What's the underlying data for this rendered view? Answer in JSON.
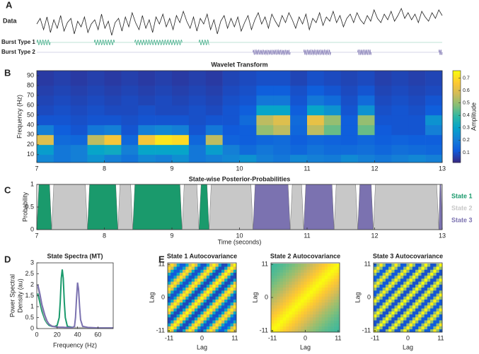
{
  "chart_data": [
    {
      "type": "trace",
      "panel": "A",
      "label": "Data",
      "color": "#222222",
      "ylim": [
        -0.8,
        1.3
      ],
      "xlim": [
        7,
        13
      ],
      "values": [
        0.1,
        0.5,
        -0.3,
        0.6,
        -0.5,
        0.4,
        -0.2,
        0.7,
        -0.4,
        0.2,
        0.5,
        -0.6,
        0.3,
        -0.1,
        0.6,
        -0.5,
        0.1,
        0.4,
        -0.3,
        0.8,
        -0.2,
        0.3,
        -0.7,
        0.2,
        0.5,
        -0.4,
        0.6,
        -0.1,
        0.9,
        0.2,
        -0.3,
        0.7,
        -0.2,
        0.4,
        -0.5,
        0.6,
        0.1,
        0.8,
        -0.1,
        0.5,
        -0.3,
        0.7,
        0.2,
        1.0,
        0.3,
        -0.2,
        0.6,
        -0.4,
        0.5,
        0.1,
        0.8,
        -0.3,
        0.4,
        -0.6,
        0.3,
        0.7,
        -0.2,
        0.5,
        -0.1,
        0.6,
        -0.4,
        0.2,
        0.7,
        -0.3,
        0.4,
        0.9,
        0.1,
        0.6,
        -0.2,
        0.8,
        0.3,
        -0.1,
        0.7,
        0.2,
        0.9,
        0.4,
        -0.2,
        0.6,
        0.1,
        0.8,
        -0.3,
        0.5,
        0.2,
        0.9,
        0.0,
        0.6,
        0.3,
        1.0,
        0.2,
        0.7,
        -0.1,
        0.5,
        0.8,
        0.2,
        0.9,
        0.4,
        0.1,
        0.7,
        0.3,
        1.1,
        0.5,
        0.2,
        0.8,
        0.4,
        1.0,
        0.3,
        0.7,
        1.2,
        0.5,
        0.9,
        0.4,
        0.8,
        0.2,
        1.0,
        0.6,
        0.3,
        0.9,
        0.5,
        1.1,
        0.7
      ],
      "bursts": [
        {
          "name": "Burst Type 1",
          "color": "#2ca37a",
          "frequency": 25,
          "intervals": [
            [
              7.0,
              7.2
            ],
            [
              7.85,
              8.15
            ],
            [
              8.45,
              9.15
            ],
            [
              9.4,
              9.55
            ]
          ]
        },
        {
          "name": "Burst Type 2",
          "color": "#7b72b0",
          "frequency": 40,
          "intervals": [
            [
              10.2,
              10.75
            ],
            [
              10.95,
              11.35
            ],
            [
              11.75,
              11.95
            ],
            [
              12.95,
              13.0
            ]
          ]
        }
      ]
    },
    {
      "type": "heatmap",
      "panel": "B",
      "title": "Wavelet Transform",
      "ylabel": "Frequency (Hz)",
      "colormap": "parula",
      "xlim": [
        7,
        13
      ],
      "xticks": [
        7,
        8,
        9,
        10,
        11,
        12,
        13
      ],
      "ylim": [
        2,
        95
      ],
      "yticks": [
        10,
        20,
        30,
        40,
        50,
        60,
        70,
        80,
        90
      ],
      "xbins": [
        7,
        7.25,
        7.5,
        7.75,
        8,
        8.25,
        8.5,
        8.75,
        9,
        9.25,
        9.5,
        9.75,
        10,
        10.25,
        10.5,
        10.75,
        11,
        11.25,
        11.5,
        11.75,
        12,
        12.25,
        12.5,
        12.75,
        13
      ],
      "ybins": [
        2,
        10,
        20,
        30,
        40,
        50,
        60,
        70,
        80,
        95
      ],
      "values": [
        [
          0.22,
          0.18,
          0.2,
          0.25,
          0.2,
          0.17,
          0.22,
          0.2,
          0.24,
          0.18,
          0.2,
          0.22,
          0.25,
          0.2,
          0.18,
          0.22,
          0.2,
          0.19,
          0.23,
          0.2,
          0.18,
          0.2,
          0.22,
          0.2
        ],
        [
          0.28,
          0.18,
          0.2,
          0.3,
          0.32,
          0.2,
          0.3,
          0.3,
          0.3,
          0.18,
          0.28,
          0.2,
          0.15,
          0.18,
          0.16,
          0.14,
          0.17,
          0.15,
          0.15,
          0.16,
          0.14,
          0.16,
          0.15,
          0.14
        ],
        [
          0.6,
          0.15,
          0.14,
          0.55,
          0.65,
          0.14,
          0.65,
          0.72,
          0.7,
          0.14,
          0.55,
          0.13,
          0.12,
          0.14,
          0.15,
          0.12,
          0.14,
          0.13,
          0.12,
          0.14,
          0.12,
          0.13,
          0.12,
          0.12
        ],
        [
          0.2,
          0.12,
          0.1,
          0.18,
          0.2,
          0.1,
          0.2,
          0.22,
          0.2,
          0.1,
          0.18,
          0.11,
          0.12,
          0.5,
          0.55,
          0.14,
          0.55,
          0.45,
          0.12,
          0.45,
          0.11,
          0.1,
          0.1,
          0.2
        ],
        [
          0.1,
          0.1,
          0.09,
          0.1,
          0.1,
          0.09,
          0.1,
          0.1,
          0.1,
          0.09,
          0.1,
          0.1,
          0.15,
          0.55,
          0.6,
          0.15,
          0.62,
          0.5,
          0.12,
          0.5,
          0.1,
          0.1,
          0.1,
          0.25
        ],
        [
          0.08,
          0.09,
          0.08,
          0.09,
          0.08,
          0.08,
          0.09,
          0.08,
          0.08,
          0.09,
          0.08,
          0.1,
          0.12,
          0.3,
          0.3,
          0.12,
          0.3,
          0.25,
          0.1,
          0.25,
          0.09,
          0.1,
          0.09,
          0.12
        ],
        [
          0.07,
          0.08,
          0.07,
          0.08,
          0.07,
          0.08,
          0.07,
          0.08,
          0.07,
          0.08,
          0.07,
          0.09,
          0.1,
          0.18,
          0.18,
          0.1,
          0.18,
          0.15,
          0.09,
          0.15,
          0.08,
          0.09,
          0.08,
          0.1
        ],
        [
          0.06,
          0.07,
          0.06,
          0.07,
          0.06,
          0.07,
          0.06,
          0.07,
          0.06,
          0.07,
          0.06,
          0.08,
          0.09,
          0.12,
          0.12,
          0.09,
          0.12,
          0.1,
          0.08,
          0.1,
          0.07,
          0.08,
          0.07,
          0.08
        ],
        [
          0.05,
          0.06,
          0.05,
          0.06,
          0.05,
          0.06,
          0.05,
          0.06,
          0.05,
          0.06,
          0.05,
          0.07,
          0.08,
          0.09,
          0.09,
          0.07,
          0.09,
          0.08,
          0.07,
          0.08,
          0.06,
          0.07,
          0.06,
          0.07
        ]
      ],
      "colorbar": {
        "label": "Amplitude",
        "lim": [
          0.02,
          0.76
        ],
        "ticks": [
          0.1,
          0.2,
          0.3,
          0.4,
          0.5,
          0.6,
          0.7
        ]
      }
    },
    {
      "type": "state-area",
      "panel": "C",
      "title": "State-wise Posterior-Probabilities",
      "xlabel": "Time (seconds)",
      "ylabel": "Probability",
      "xlim": [
        7,
        13
      ],
      "xticks": [
        7,
        8,
        9,
        10,
        11,
        12,
        13
      ],
      "ylim": [
        0,
        1
      ],
      "yticks": [
        0,
        0.5,
        1
      ],
      "series": [
        {
          "name": "State 1",
          "color": "#1a9a6c"
        },
        {
          "name": "State 2",
          "color": "#c8c8c8"
        },
        {
          "name": "State 3",
          "color": "#7b72b0"
        }
      ],
      "segments": [
        [
          7.0,
          7.22,
          0
        ],
        [
          7.22,
          7.75,
          1
        ],
        [
          7.75,
          8.2,
          0
        ],
        [
          8.2,
          8.42,
          1
        ],
        [
          8.42,
          9.15,
          0
        ],
        [
          9.15,
          9.4,
          1
        ],
        [
          9.4,
          9.55,
          0
        ],
        [
          9.55,
          10.2,
          1
        ],
        [
          10.2,
          10.75,
          2
        ],
        [
          10.75,
          10.95,
          1
        ],
        [
          10.95,
          11.4,
          2
        ],
        [
          11.4,
          11.75,
          1
        ],
        [
          11.75,
          11.98,
          2
        ],
        [
          11.98,
          12.95,
          1
        ],
        [
          12.95,
          13.0,
          2
        ]
      ]
    },
    {
      "type": "line",
      "panel": "D",
      "title": "State Spectra (MT)",
      "xlabel": "Frequency (Hz)",
      "ylabel": [
        "Power Spectral",
        "Density (au)"
      ],
      "xlim": [
        0,
        75
      ],
      "xticks": [
        0,
        20,
        40,
        60
      ],
      "ylim": [
        0,
        3
      ],
      "yticks": [
        0,
        0.5,
        1,
        1.5,
        2,
        2.5,
        3
      ],
      "x": [
        1,
        3,
        5,
        8,
        10,
        12,
        15,
        18,
        20,
        22,
        23,
        24,
        25,
        26,
        27,
        28,
        30,
        35,
        37,
        38,
        39,
        40,
        41,
        42,
        43,
        45,
        50,
        60,
        70,
        75
      ],
      "series": [
        {
          "name": "State 1",
          "color": "#1a9a6c",
          "values": [
            1.6,
            1.2,
            0.8,
            0.4,
            0.25,
            0.15,
            0.1,
            0.1,
            0.15,
            0.5,
            1.2,
            2.3,
            2.7,
            2.3,
            1.2,
            0.5,
            0.1,
            0.05,
            0.03,
            0.03,
            0.03,
            0.03,
            0.03,
            0.03,
            0.03,
            0.03,
            0.03,
            0.03,
            0.03,
            0.03
          ]
        },
        {
          "name": "State 2",
          "color": "#b0b0b0",
          "values": [
            1.9,
            1.5,
            1.0,
            0.5,
            0.3,
            0.2,
            0.12,
            0.08,
            0.05,
            0.05,
            0.05,
            0.05,
            0.05,
            0.05,
            0.05,
            0.05,
            0.04,
            0.04,
            0.04,
            0.04,
            0.04,
            0.04,
            0.04,
            0.04,
            0.04,
            0.03,
            0.03,
            0.03,
            0.03,
            0.03
          ]
        },
        {
          "name": "State 3",
          "color": "#7b72b0",
          "values": [
            2.0,
            1.6,
            1.1,
            0.6,
            0.35,
            0.2,
            0.1,
            0.08,
            0.07,
            0.06,
            0.06,
            0.06,
            0.06,
            0.06,
            0.05,
            0.05,
            0.05,
            0.05,
            0.1,
            0.5,
            1.4,
            2.1,
            1.8,
            1.0,
            0.4,
            0.1,
            0.05,
            0.03,
            0.03,
            0.03
          ]
        }
      ]
    },
    {
      "type": "matrix",
      "panel": "E",
      "title": "State 1 Autocovariance",
      "xlabel": "Lag",
      "ylabel": "Lag",
      "colormap": "parula",
      "xlim": [
        -11,
        11
      ],
      "ylim": [
        -11,
        11
      ],
      "xticks": [
        -11,
        0,
        11
      ],
      "yticks": [
        -11,
        0,
        11
      ],
      "clim": [
        -1,
        1
      ],
      "values": [
        1,
        0.6,
        -0.2,
        -0.85,
        -0.85,
        -0.2,
        0.6,
        0.95,
        0.55,
        -0.2,
        -0.8,
        -0.8,
        -0.2,
        0.55,
        0.9,
        0.5,
        -0.2,
        -0.75,
        -0.75,
        -0.2,
        0.5,
        0.85,
        0.5
      ]
    },
    {
      "type": "matrix",
      "title": "State 2 Autocovariance",
      "xlabel": "Lag",
      "ylabel": "Lag",
      "colormap": "parula",
      "xlim": [
        -11,
        11
      ],
      "ylim": [
        -11,
        11
      ],
      "xticks": [
        -11,
        0,
        11
      ],
      "yticks": [
        -11,
        0,
        11
      ],
      "clim": [
        -1,
        1
      ],
      "values": [
        1,
        0.95,
        0.9,
        0.84,
        0.78,
        0.72,
        0.66,
        0.6,
        0.54,
        0.48,
        0.43,
        0.38,
        0.33,
        0.29,
        0.25,
        0.21,
        0.18,
        0.15,
        0.12,
        0.1,
        0.08,
        0.06,
        0.05
      ]
    },
    {
      "type": "matrix",
      "title": "State 3 Autocovariance",
      "xlabel": "Lag",
      "ylabel": "Lag",
      "colormap": "parula",
      "xlim": [
        -11,
        11
      ],
      "ylim": [
        -11,
        11
      ],
      "xticks": [
        -11,
        0,
        11
      ],
      "yticks": [
        -11,
        0,
        11
      ],
      "clim": [
        -1,
        1
      ],
      "values": [
        1,
        0.3,
        -0.8,
        -0.8,
        0.3,
        0.98,
        0.3,
        -0.78,
        -0.78,
        0.3,
        0.95,
        0.29,
        -0.76,
        -0.76,
        0.29,
        0.93,
        0.28,
        -0.74,
        -0.74,
        0.28,
        0.9,
        0.27,
        -0.72
      ]
    }
  ]
}
